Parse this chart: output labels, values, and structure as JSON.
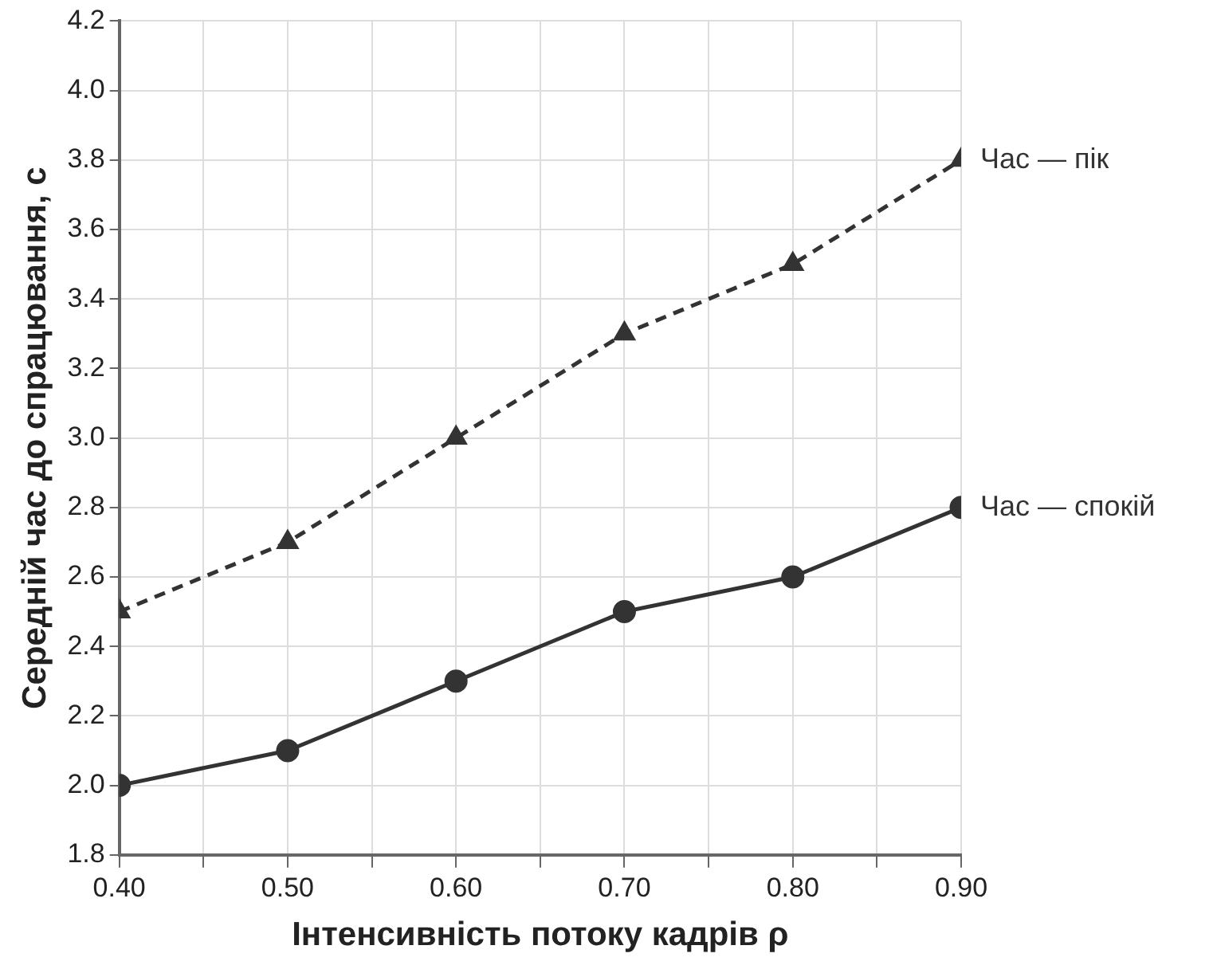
{
  "chart_data": {
    "type": "line",
    "xlabel": "Інтенсивність потоку кадрів ρ",
    "ylabel": "Середній час до спрацювання, с",
    "x": [
      0.4,
      0.5,
      0.6,
      0.7,
      0.8,
      0.9
    ],
    "series": [
      {
        "name": "Час — спокій",
        "color": "#333333",
        "values": [
          2.0,
          2.1,
          2.3,
          2.5,
          2.6,
          2.8
        ],
        "marker": "circle",
        "line_style": "solid"
      },
      {
        "name": "Час — пік",
        "color": "#333333",
        "values": [
          2.5,
          2.7,
          3.0,
          3.3,
          3.5,
          3.8
        ],
        "marker": "triangle",
        "line_style": "dashed"
      }
    ],
    "xlim": [
      0.4,
      0.9
    ],
    "xticks": [
      {
        "value": 0.4,
        "label": "0.40"
      },
      {
        "value": 0.45,
        "label": null
      },
      {
        "value": 0.5,
        "label": "0.50"
      },
      {
        "value": 0.55,
        "label": null
      },
      {
        "value": 0.6,
        "label": "0.60"
      },
      {
        "value": 0.65,
        "label": null
      },
      {
        "value": 0.7,
        "label": "0.70"
      },
      {
        "value": 0.75,
        "label": null
      },
      {
        "value": 0.8,
        "label": "0.80"
      },
      {
        "value": 0.85,
        "label": null
      },
      {
        "value": 0.9,
        "label": "0.90"
      }
    ],
    "ylim": [
      1.8,
      4.2
    ],
    "yticks": [
      1.8,
      {
        "value": 2,
        "label": "2.0"
      },
      2.2,
      2.4,
      2.6,
      2.8,
      {
        "value": 3,
        "label": "3.0"
      },
      3.2,
      3.4,
      3.6,
      3.8,
      {
        "value": 4,
        "label": "4.0"
      },
      4.2
    ],
    "grid": true,
    "legend": "right"
  }
}
